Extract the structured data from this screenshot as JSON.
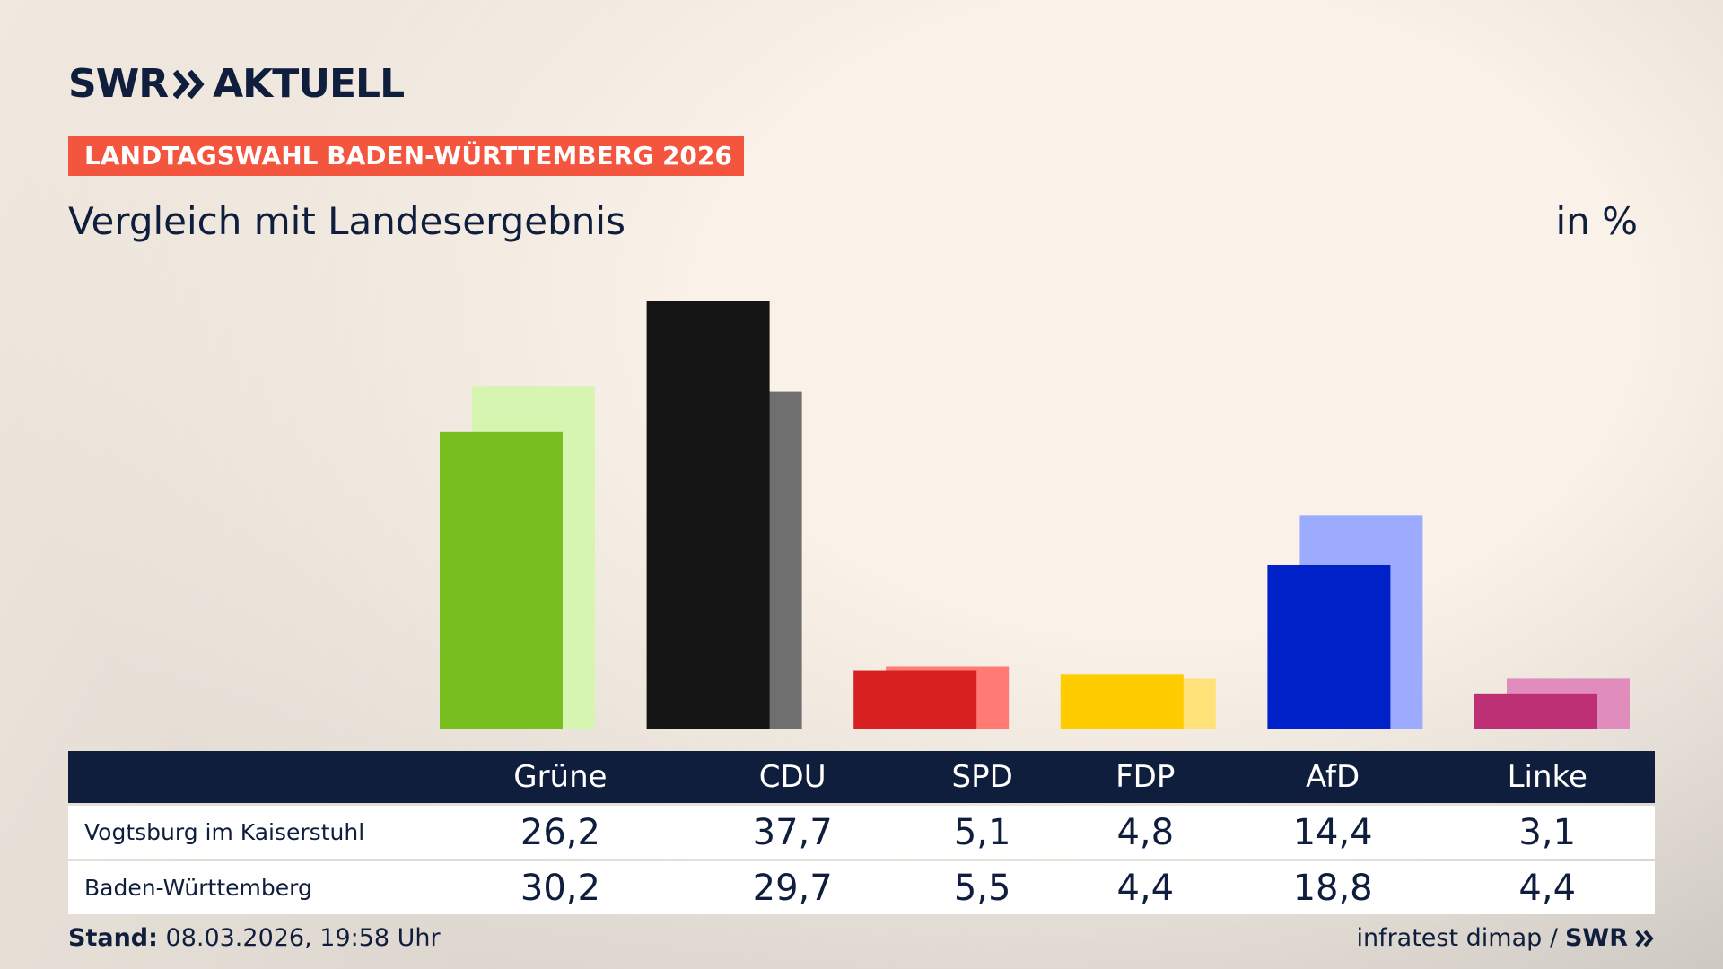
{
  "header": {
    "logo_left": "SWR",
    "logo_right": "AKTUELL"
  },
  "chart_data": {
    "type": "bar",
    "kicker": "LANDTAGSWAHL BADEN-WÜRTTEMBERG 2026",
    "title": "Vergleich mit Landesergebnis",
    "unit": "in %",
    "categories": [
      "Grüne",
      "CDU",
      "SPD",
      "FDP",
      "AfD",
      "Linke"
    ],
    "series": [
      {
        "name": "Vogtsburg im Kaiserstuhl",
        "values": [
          26.2,
          37.7,
          5.1,
          4.8,
          14.4,
          3.1
        ],
        "value_labels": [
          "26,2",
          "37,7",
          "5,1",
          "4,8",
          "14,4",
          "3,1"
        ],
        "color": [
          "#78be1e",
          "#141414",
          "#d7201f",
          "#ffcc00",
          "#0021c7",
          "#be3075"
        ]
      },
      {
        "name": "Baden-Württemberg",
        "values": [
          30.2,
          29.7,
          5.5,
          4.4,
          18.8,
          4.4
        ],
        "value_labels": [
          "30,2",
          "29,7",
          "5,5",
          "4,4",
          "18,8",
          "4,4"
        ],
        "color": [
          "#d6f5b0",
          "#6f6f6f",
          "#ff7b73",
          "#ffe37a",
          "#9dabff",
          "#e08cbc"
        ]
      }
    ]
  },
  "footer": {
    "stand_label": "Stand:",
    "stand": "08.03.2026, 19:58 Uhr",
    "source": "infratest dimap /",
    "brand": "SWR"
  }
}
